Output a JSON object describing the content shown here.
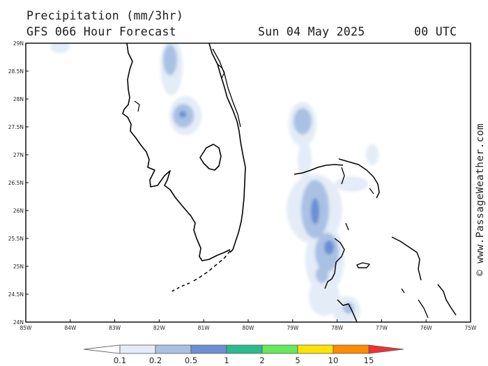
{
  "title": {
    "line1": "Precipitation (mm/3hr)",
    "line2": "GFS 066 Hour Forecast",
    "date": "Sun 04 May 2025",
    "utc": "00 UTC"
  },
  "axes": {
    "lat_labels": [
      "29N",
      "28.5N",
      "28N",
      "27.5N",
      "27N",
      "26.5N",
      "26N",
      "25.5N",
      "25N",
      "24.5N",
      "24N"
    ],
    "lon_labels": [
      "85W",
      "84W",
      "83W",
      "82W",
      "81W",
      "80W",
      "79W",
      "78W",
      "77W",
      "76W",
      "75W"
    ],
    "lat_range": [
      24,
      29
    ],
    "lon_range": [
      -85,
      -75
    ]
  },
  "credit": "© www.PassageWeather.com",
  "colorbar": {
    "labels": [
      "0.1",
      "0.2",
      "0.5",
      "1",
      "2",
      "5",
      "10",
      "15"
    ],
    "colors": [
      "#ffffff",
      "#e3ecf7",
      "#a9c1e3",
      "#6a8fd3",
      "#2bbb8f",
      "#66e85a",
      "#ffe400",
      "#ff8a00",
      "#f03232"
    ]
  },
  "icons": {
    "map": "florida-bahamas-precipitation-map"
  }
}
